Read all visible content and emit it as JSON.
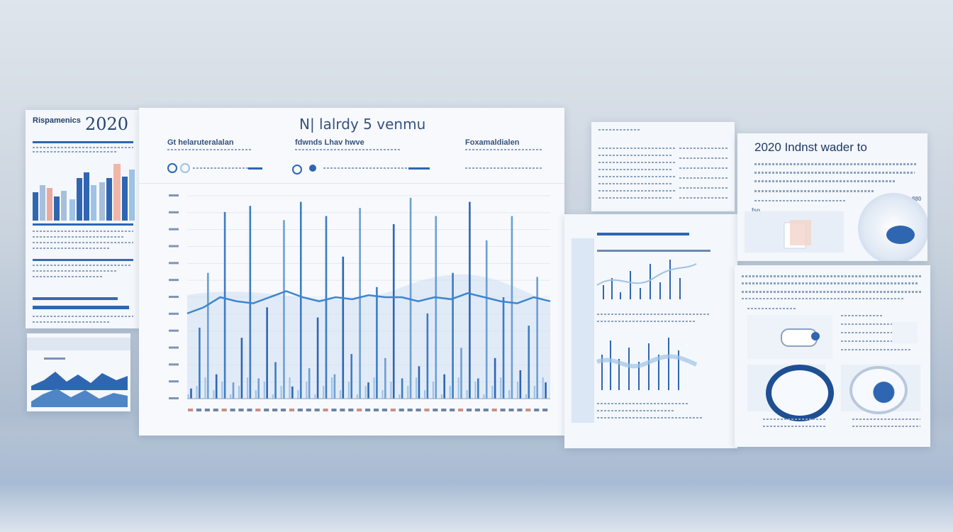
{
  "left_panel": {
    "title": "Rispamenics",
    "year": "2020"
  },
  "main_panel": {
    "title": "N| lalrdy 5 venmu",
    "col1_heading": "Gt helaruteralalan",
    "col2_heading": "fdwnds Lhav hwve",
    "col3_heading": "Foxamaldialen",
    "bars": [
      {
        "h": 0.05
      },
      {
        "h": 0.35
      },
      {
        "h": 0.62
      },
      {
        "h": 0.12
      },
      {
        "h": 0.92
      },
      {
        "h": 0.08
      },
      {
        "h": 0.3
      },
      {
        "h": 0.95
      },
      {
        "h": 0.1
      },
      {
        "h": 0.45
      },
      {
        "h": 0.18
      },
      {
        "h": 0.88
      },
      {
        "h": 0.06
      },
      {
        "h": 0.97
      },
      {
        "h": 0.15
      },
      {
        "h": 0.4
      },
      {
        "h": 0.9
      },
      {
        "h": 0.12
      },
      {
        "h": 0.7
      },
      {
        "h": 0.22
      },
      {
        "h": 0.94
      },
      {
        "h": 0.08
      },
      {
        "h": 0.55
      },
      {
        "h": 0.2
      },
      {
        "h": 0.86
      },
      {
        "h": 0.1
      },
      {
        "h": 0.99
      },
      {
        "h": 0.16
      },
      {
        "h": 0.42
      },
      {
        "h": 0.9
      },
      {
        "h": 0.12
      },
      {
        "h": 0.62
      },
      {
        "h": 0.25
      },
      {
        "h": 0.97
      },
      {
        "h": 0.1
      },
      {
        "h": 0.78
      },
      {
        "h": 0.2
      },
      {
        "h": 0.5
      },
      {
        "h": 0.9
      },
      {
        "h": 0.14
      },
      {
        "h": 0.36
      },
      {
        "h": 0.6
      },
      {
        "h": 0.08
      }
    ],
    "trend": [
      0.42,
      0.45,
      0.5,
      0.48,
      0.47,
      0.5,
      0.53,
      0.5,
      0.48,
      0.5,
      0.49,
      0.51,
      0.5,
      0.5,
      0.48,
      0.5,
      0.49,
      0.52,
      0.5,
      0.48,
      0.47,
      0.5,
      0.48
    ]
  },
  "right_panel": {
    "title": "2020 Indnst wader to",
    "left_label": "fsp",
    "right_label": "880"
  },
  "colors": {
    "accent": "#2f66b1",
    "light": "#9ec3e6",
    "panel": "#f4f7fb"
  }
}
